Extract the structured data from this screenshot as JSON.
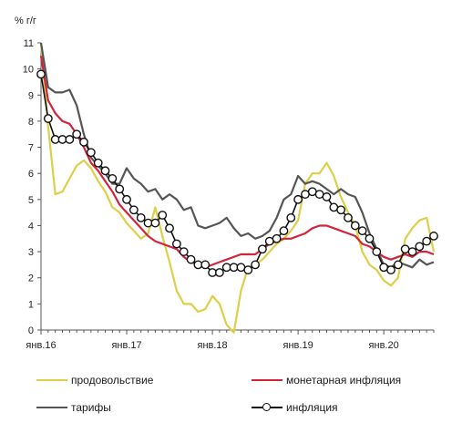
{
  "chart_data": {
    "type": "line",
    "ylabel": "% г/г",
    "ylim": [
      0,
      11
    ],
    "yticks": [
      0,
      1,
      2,
      3,
      4,
      5,
      6,
      7,
      8,
      9,
      10,
      11
    ],
    "x_tick_labels": [
      "янв.16",
      "янв.17",
      "янв.18",
      "янв.19",
      "янв.20"
    ],
    "x": [
      "янв.16",
      "фев.16",
      "мар.16",
      "апр.16",
      "май.16",
      "июн.16",
      "июл.16",
      "авг.16",
      "сен.16",
      "окт.16",
      "ноя.16",
      "дек.16",
      "янв.17",
      "фев.17",
      "мар.17",
      "апр.17",
      "май.17",
      "июн.17",
      "июл.17",
      "авг.17",
      "сен.17",
      "окт.17",
      "ноя.17",
      "дек.17",
      "янв.18",
      "фев.18",
      "мар.18",
      "апр.18",
      "май.18",
      "июн.18",
      "июл.18",
      "авг.18",
      "сен.18",
      "окт.18",
      "ноя.18",
      "дек.18",
      "янв.19",
      "фев.19",
      "мар.19",
      "апр.19",
      "май.19",
      "июн.19",
      "июл.19",
      "авг.19",
      "сен.19",
      "окт.19",
      "ноя.19",
      "дек.19",
      "янв.20",
      "фев.20",
      "мар.20",
      "апр.20",
      "май.20",
      "июн.20",
      "июл.20",
      "авг.20"
    ],
    "grid": false,
    "legend_position": "bottom",
    "series": [
      {
        "name": "продовольствие",
        "color": "#ddcf47",
        "marker": "none",
        "values": [
          11.0,
          7.8,
          5.2,
          5.3,
          5.8,
          6.3,
          6.5,
          6.2,
          5.7,
          5.3,
          4.7,
          4.5,
          4.1,
          3.8,
          3.5,
          3.7,
          4.7,
          3.6,
          2.6,
          1.5,
          1.0,
          1.0,
          0.7,
          0.8,
          1.3,
          1.0,
          0.2,
          -0.1,
          1.5,
          2.4,
          2.5,
          2.7,
          3.0,
          3.3,
          3.5,
          3.8,
          4.2,
          5.6,
          6.0,
          6.0,
          6.4,
          5.9,
          5.1,
          4.5,
          4.0,
          3.0,
          2.5,
          2.3,
          1.9,
          1.7,
          2.0,
          3.5,
          3.9,
          4.2,
          4.3,
          3.0
        ]
      },
      {
        "name": "монетарная инфляция",
        "color": "#d2243a",
        "marker": "none",
        "values": [
          10.5,
          8.8,
          8.3,
          8.0,
          7.9,
          7.5,
          7.0,
          6.4,
          6.1,
          5.7,
          5.3,
          4.8,
          4.5,
          4.2,
          3.9,
          3.6,
          3.4,
          3.3,
          3.2,
          3.1,
          2.8,
          2.6,
          2.5,
          2.4,
          2.5,
          2.6,
          2.7,
          2.8,
          2.9,
          2.9,
          2.9,
          3.1,
          3.3,
          3.4,
          3.5,
          3.5,
          3.6,
          3.7,
          3.9,
          4.0,
          4.0,
          3.9,
          3.8,
          3.7,
          3.6,
          3.3,
          3.2,
          3.0,
          2.8,
          2.7,
          2.8,
          2.9,
          2.8,
          3.0,
          3.0,
          2.9
        ]
      },
      {
        "name": "тарифы",
        "color": "#555555",
        "marker": "none",
        "values": [
          11.0,
          9.3,
          9.1,
          9.1,
          9.2,
          8.6,
          7.5,
          6.6,
          6.3,
          6.0,
          5.6,
          5.6,
          6.2,
          5.8,
          5.6,
          5.3,
          5.4,
          5.0,
          5.2,
          5.0,
          4.6,
          4.7,
          4.0,
          3.9,
          4.0,
          4.1,
          4.3,
          3.9,
          3.6,
          3.7,
          3.5,
          3.6,
          3.8,
          4.3,
          5.0,
          5.2,
          5.9,
          5.6,
          5.7,
          5.6,
          5.4,
          5.2,
          5.4,
          5.2,
          5.1,
          4.5,
          3.7,
          3.1,
          2.5,
          2.4,
          2.6,
          2.5,
          2.4,
          2.7,
          2.5,
          2.6
        ]
      },
      {
        "name": "инфляция",
        "color": "#111111",
        "marker": "circle",
        "values": [
          9.8,
          8.1,
          7.3,
          7.3,
          7.3,
          7.5,
          7.2,
          6.8,
          6.4,
          6.1,
          5.8,
          5.4,
          5.0,
          4.6,
          4.3,
          4.1,
          4.1,
          4.4,
          3.9,
          3.3,
          3.0,
          2.7,
          2.5,
          2.5,
          2.2,
          2.2,
          2.4,
          2.4,
          2.4,
          2.3,
          2.5,
          3.1,
          3.4,
          3.5,
          3.8,
          4.3,
          5.0,
          5.2,
          5.3,
          5.2,
          5.1,
          4.7,
          4.6,
          4.3,
          4.0,
          3.8,
          3.5,
          3.0,
          2.4,
          2.3,
          2.5,
          3.1,
          3.0,
          3.2,
          3.4,
          3.6
        ]
      }
    ]
  }
}
